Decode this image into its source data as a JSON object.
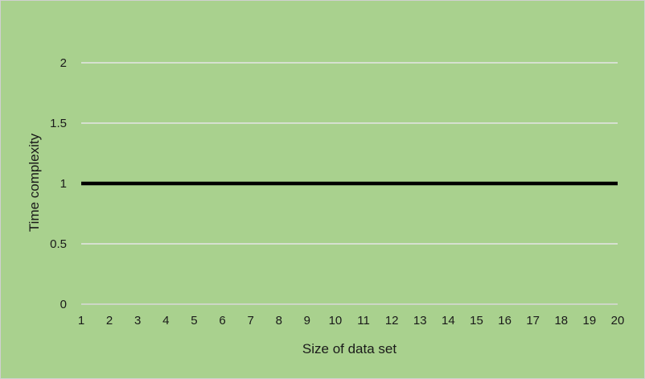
{
  "chart_data": {
    "type": "line",
    "title": "",
    "xlabel": "Size of data set",
    "ylabel": "Time complexity",
    "x": [
      1,
      2,
      3,
      4,
      5,
      6,
      7,
      8,
      9,
      10,
      11,
      12,
      13,
      14,
      15,
      16,
      17,
      18,
      19,
      20
    ],
    "series": [
      {
        "values": [
          1,
          1,
          1,
          1,
          1,
          1,
          1,
          1,
          1,
          1,
          1,
          1,
          1,
          1,
          1,
          1,
          1,
          1,
          1,
          1
        ],
        "color": "#000000"
      }
    ],
    "ylim": [
      0,
      2
    ],
    "yticks": [
      0,
      0.5,
      1,
      1.5,
      2
    ],
    "ytick_labels": [
      "0",
      "0.5",
      "1",
      "1.5",
      "2"
    ],
    "xtick_labels": [
      "1",
      "2",
      "3",
      "4",
      "5",
      "6",
      "7",
      "8",
      "9",
      "10",
      "11",
      "12",
      "13",
      "14",
      "15",
      "16",
      "17",
      "18",
      "19",
      "20"
    ],
    "grid": true,
    "legend": "none",
    "colors": {
      "background": "#a9d18e",
      "border": "#d0d0d0",
      "gridline": "#e6e6e6",
      "baseline": "#d9d9d9",
      "line": "#000000"
    }
  }
}
